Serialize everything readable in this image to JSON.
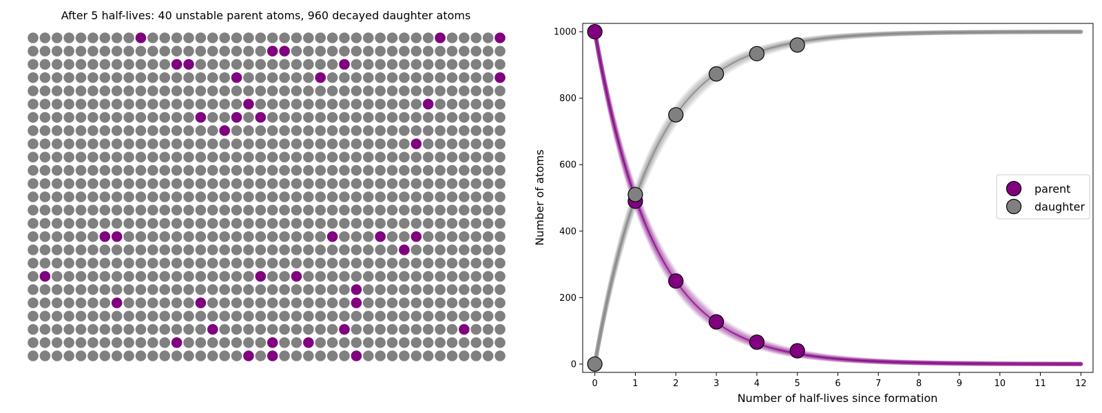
{
  "colors": {
    "parent": "#800080",
    "daughter": "#808080",
    "marker_edge": "#000000"
  },
  "grid": {
    "title": "After 5 half-lives: 40 unstable parent atoms, 960 decayed daughter atoms",
    "columns": 40,
    "rows": 25,
    "parent_cells": [
      [
        0,
        9
      ],
      [
        0,
        34
      ],
      [
        0,
        39
      ],
      [
        1,
        20
      ],
      [
        1,
        21
      ],
      [
        2,
        12
      ],
      [
        2,
        13
      ],
      [
        2,
        26
      ],
      [
        3,
        17
      ],
      [
        3,
        24
      ],
      [
        3,
        39
      ],
      [
        5,
        18
      ],
      [
        5,
        33
      ],
      [
        6,
        14
      ],
      [
        6,
        17
      ],
      [
        6,
        19
      ],
      [
        7,
        16
      ],
      [
        8,
        32
      ],
      [
        15,
        6
      ],
      [
        15,
        7
      ],
      [
        15,
        25
      ],
      [
        15,
        29
      ],
      [
        15,
        32
      ],
      [
        16,
        31
      ],
      [
        18,
        1
      ],
      [
        18,
        19
      ],
      [
        18,
        22
      ],
      [
        19,
        27
      ],
      [
        20,
        7
      ],
      [
        20,
        14
      ],
      [
        20,
        27
      ],
      [
        22,
        15
      ],
      [
        22,
        26
      ],
      [
        22,
        36
      ],
      [
        23,
        12
      ],
      [
        23,
        20
      ],
      [
        23,
        23
      ],
      [
        24,
        18
      ],
      [
        24,
        20
      ],
      [
        24,
        27
      ]
    ]
  },
  "chart_data": {
    "type": "line",
    "xlabel": "Number of half-lives since formation",
    "ylabel": "Number of atoms",
    "xlim": [
      -0.3,
      12.3
    ],
    "ylim": [
      -25,
      1025
    ],
    "xticks": [
      "0",
      "1",
      "2",
      "3",
      "4",
      "5",
      "6",
      "7",
      "8",
      "9",
      "10",
      "11",
      "12"
    ],
    "yticks": [
      "0",
      "200",
      "400",
      "600",
      "800",
      "1000"
    ],
    "grid": false,
    "legend_position": "center-right",
    "series": [
      {
        "name": "parent",
        "x": [
          0,
          1,
          2,
          3,
          4,
          5
        ],
        "values": [
          1000,
          490,
          250,
          127,
          66,
          40
        ]
      },
      {
        "name": "daughter",
        "x": [
          0,
          1,
          2,
          3,
          4,
          5
        ],
        "values": [
          0,
          510,
          750,
          873,
          934,
          960
        ]
      }
    ],
    "expected_curve": {
      "parent_initial": 1000,
      "x_range": [
        0,
        12
      ]
    }
  }
}
